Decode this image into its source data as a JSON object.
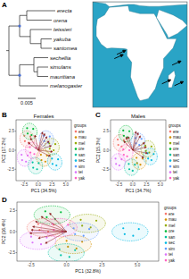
{
  "chart_data": [
    {
      "type": "tree",
      "panel": "A",
      "scale_bar": 0.005,
      "tree": {
        "children": [
          {
            "length": 0.003,
            "children": [
              {
                "length": 0.002,
                "children": [
                  {
                    "label": "erecta",
                    "length": 0.008
                  },
                  {
                    "label": "orena",
                    "length": 0.007
                  }
                ]
              },
              {
                "length": 0.003,
                "children": [
                  {
                    "label": "teissieri",
                    "length": 0.006
                  },
                  {
                    "length": 0.003,
                    "children": [
                      {
                        "label": "yakuba",
                        "length": 0.003
                      },
                      {
                        "label": "santomea",
                        "length": 0.003
                      }
                    ]
                  }
                ]
              }
            ]
          },
          {
            "length": 0.003,
            "children": [
              {
                "length": 0.004,
                "children": [
                  {
                    "label": "sechellia",
                    "length": 0.004
                  },
                  {
                    "length": 0.001,
                    "children": [
                      {
                        "label": "simulans",
                        "length": 0.003
                      },
                      {
                        "label": "mauritiana",
                        "length": 0.003
                      }
                    ]
                  }
                ]
              },
              {
                "label": "melanogaster",
                "length": 0.008
              }
            ]
          }
        ]
      }
    },
    {
      "type": "map",
      "xlim": [
        -20,
        60
      ],
      "ylim": [
        -40,
        40
      ],
      "markers": [
        {
          "lon": 6.6,
          "lat": 0.3
        },
        {
          "lon": 8.7,
          "lat": 3.5
        },
        {
          "lon": 55.5,
          "lat": -4.6
        },
        {
          "lon": 46.9,
          "lat": -18.8
        },
        {
          "lon": 57.5,
          "lat": -20.2
        }
      ]
    },
    {
      "type": "biplot",
      "panel": "B",
      "title": "Females",
      "xlabel": "PC1 (34.5%)",
      "ylabel": "PC2 (17.2%)",
      "legend": "right",
      "legend_title": "groups",
      "xlim": [
        -4,
        6
      ],
      "ylim": [
        -4,
        4
      ],
      "xticks": [
        -2.5,
        {
          "value": 0,
          "label": "0.0"
        },
        2.5,
        {
          "value": 5,
          "label": "5.0"
        }
      ],
      "yticks": [
        -2.5,
        {
          "value": 0,
          "label": "0.0"
        },
        2.5
      ],
      "series": [
        {
          "name": "ere",
          "color": "#F8766D",
          "x": [
            -1.4,
            -2.5,
            -1.7,
            -2.4
          ],
          "y": [
            1.8,
            1.9,
            1.0,
            1.2
          ]
        },
        {
          "name": "mau",
          "color": "#D39200",
          "x": [
            1.6,
            0.5,
            1.3,
            0.6
          ],
          "y": [
            -0.7,
            -0.6,
            -1.5,
            -1.3
          ]
        },
        {
          "name": "mel",
          "color": "#93AA00",
          "x": [
            3.1,
            2.0,
            2.8,
            2.1
          ],
          "y": [
            0.8,
            0.9,
            0.0,
            0.2
          ]
        },
        {
          "name": "ore",
          "color": "#00BA38",
          "x": [
            -0.9,
            -2.0,
            -1.2,
            -1.9
          ],
          "y": [
            2.8,
            2.9,
            2.0,
            2.2
          ]
        },
        {
          "name": "san",
          "color": "#00C19F",
          "x": [
            0.1,
            -1.0,
            -0.2,
            -0.9
          ],
          "y": [
            -1.7,
            -1.6,
            -2.5,
            -2.3
          ]
        },
        {
          "name": "sec",
          "color": "#00B9E3",
          "x": [
            3.6,
            2.5,
            3.3,
            2.6
          ],
          "y": [
            -1.2,
            -1.1,
            -2.0,
            -1.8
          ]
        },
        {
          "name": "sim",
          "color": "#619CFF",
          "x": [
            2.1,
            1.0,
            1.8,
            1.1
          ],
          "y": [
            1.8,
            1.9,
            1.0,
            1.2
          ]
        },
        {
          "name": "tei",
          "color": "#DB72FB",
          "x": [
            -1.9,
            -3.0,
            -2.2,
            -2.9
          ],
          "y": [
            -0.7,
            -0.6,
            -1.5,
            -1.3
          ]
        },
        {
          "name": "yak",
          "color": "#FF61C3",
          "x": [
            -0.4,
            -1.5,
            -0.7,
            -1.4
          ],
          "y": [
            0.3,
            0.4,
            -0.5,
            -0.3
          ]
        }
      ],
      "loadings": {
        "x": [
          2.0,
          2.4,
          1.6,
          2.6,
          1.2,
          -1.8,
          -1.4,
          2.2,
          0.8,
          -0.6
        ],
        "y": [
          1.2,
          0.6,
          1.8,
          -0.2,
          2.2,
          1.0,
          1.6,
          -0.8,
          2.4,
          2.0
        ]
      }
    },
    {
      "type": "biplot",
      "panel": "C",
      "title": "Males",
      "xlabel": "PC1 (34.7%)",
      "ylabel": "PC2 (15.3%)",
      "legend": "right",
      "legend_title": "groups",
      "xlim": [
        -4,
        6
      ],
      "ylim": [
        -4,
        4
      ],
      "xticks": [
        -2.5,
        {
          "value": 0,
          "label": "0.0"
        },
        2.5,
        {
          "value": 5,
          "label": "5.0"
        }
      ],
      "yticks": [
        -2.5,
        {
          "value": 0,
          "label": "0.0"
        },
        2.5
      ],
      "series": [
        {
          "name": "ere",
          "color": "#F8766D",
          "x": [
            -1.6,
            -2.7,
            -2.0,
            -2.6
          ],
          "y": [
            1.3,
            1.4,
            0.5,
            0.7
          ]
        },
        {
          "name": "mau",
          "color": "#D39200",
          "x": [
            1.8,
            0.7,
            1.4,
            0.8
          ],
          "y": [
            -1.1,
            -1.0,
            -1.9,
            -1.7
          ]
        },
        {
          "name": "mel",
          "color": "#93AA00",
          "x": [
            3.4,
            2.3,
            3.0,
            2.4
          ],
          "y": [
            0.5,
            0.6,
            -0.3,
            -0.1
          ]
        },
        {
          "name": "ore",
          "color": "#00BA38",
          "x": [
            -0.6,
            -1.7,
            -1.0,
            -1.6
          ],
          "y": [
            2.5,
            2.6,
            1.7,
            1.9
          ]
        },
        {
          "name": "san",
          "color": "#00C19F",
          "x": [
            0.4,
            -0.7,
            0.0,
            -0.6
          ],
          "y": [
            -1.9,
            -1.8,
            -2.7,
            -2.5
          ]
        },
        {
          "name": "sec",
          "color": "#00B9E3",
          "x": [
            3.8,
            2.7,
            3.4,
            2.8
          ],
          "y": [
            -0.5,
            -0.4,
            -1.3,
            -1.1
          ]
        },
        {
          "name": "sim",
          "color": "#619CFF",
          "x": [
            1.6,
            0.5,
            1.2,
            0.6
          ],
          "y": [
            1.5,
            1.6,
            0.7,
            0.9
          ]
        },
        {
          "name": "tei",
          "color": "#DB72FB",
          "x": [
            -2.0,
            -3.1,
            -2.4,
            -3.0
          ],
          "y": [
            -1.2,
            -1.1,
            -2.0,
            -1.8
          ]
        },
        {
          "name": "yak",
          "color": "#FF61C3",
          "x": [
            -0.6,
            -1.7,
            -1.0,
            -1.6
          ],
          "y": [
            0.0,
            0.1,
            -0.8,
            -0.6
          ]
        }
      ],
      "loadings": {
        "x": [
          2.2,
          2.5,
          1.4,
          2.7,
          1.0,
          -1.6,
          -1.2,
          2.0,
          0.6,
          -0.8
        ],
        "y": [
          1.0,
          0.4,
          1.9,
          -0.4,
          2.3,
          1.2,
          1.7,
          -1.0,
          2.5,
          1.8
        ]
      }
    },
    {
      "type": "biplot",
      "panel": "D",
      "xlabel": "PC1 (32.8%)",
      "ylabel": "PC2 (16.4%)",
      "legend": "right",
      "legend_title": "groups",
      "xlim": [
        -3.5,
        6.5
      ],
      "ylim": [
        -3.5,
        3.5
      ],
      "xticks": [
        -2.5,
        {
          "value": 0,
          "label": "0.0"
        },
        2.5,
        {
          "value": 5,
          "label": "5.0"
        }
      ],
      "yticks": [
        -2.5,
        {
          "value": 0,
          "label": "0.0"
        },
        2.5
      ],
      "series": [
        {
          "name": "ere",
          "color": "#F8766D",
          "x": [
            -0.9,
            -2.0,
            -1.3,
            -1.9
          ],
          "y": [
            0.8,
            0.9,
            0.0,
            0.2
          ]
        },
        {
          "name": "mau",
          "color": "#D39200",
          "x": [
            1.1,
            0.0,
            0.7,
            0.1
          ],
          "y": [
            -1.2,
            -1.1,
            -2.0,
            -1.8
          ]
        },
        {
          "name": "mel",
          "color": "#93AA00",
          "x": [
            2.1,
            1.0,
            1.7,
            1.1
          ],
          "y": [
            1.3,
            1.4,
            0.5,
            0.7
          ]
        },
        {
          "name": "ore",
          "color": "#00BA38",
          "x": [
            -0.4,
            -1.5,
            -0.8,
            -1.4
          ],
          "y": [
            2.3,
            2.4,
            1.5,
            1.7
          ]
        },
        {
          "name": "san",
          "color": "#00C19F",
          "x": [
            0.6,
            -0.5,
            0.2,
            -0.4
          ],
          "y": [
            -2.2,
            -2.1,
            -3.0,
            -2.8
          ]
        },
        {
          "name": "sec",
          "color": "#00B9E3",
          "x": [
            5.1,
            4.0,
            4.7,
            4.1
          ],
          "y": [
            0.3,
            0.4,
            -0.5,
            -0.3
          ]
        },
        {
          "name": "sim",
          "color": "#619CFF",
          "x": [
            1.6,
            0.5,
            1.2,
            0.6
          ],
          "y": [
            0.3,
            0.4,
            -0.5,
            -0.3
          ]
        },
        {
          "name": "tei",
          "color": "#DB72FB",
          "x": [
            -1.4,
            -2.5,
            -1.8,
            -2.4
          ],
          "y": [
            -0.7,
            -0.6,
            -1.5,
            -1.3
          ]
        },
        {
          "name": "yak",
          "color": "#FF61C3",
          "x": [
            0.1,
            -1.0,
            -0.3,
            -0.9
          ],
          "y": [
            0.8,
            0.9,
            0.0,
            0.2
          ]
        }
      ],
      "loadings": {
        "x": [
          -2.4,
          -2.2,
          -1.8,
          -2.6,
          -1.2,
          -2.0,
          -1.5,
          -2.5
        ],
        "y": [
          0.6,
          1.2,
          1.8,
          -0.2,
          2.2,
          -0.8,
          -1.4,
          0.2
        ]
      }
    }
  ]
}
